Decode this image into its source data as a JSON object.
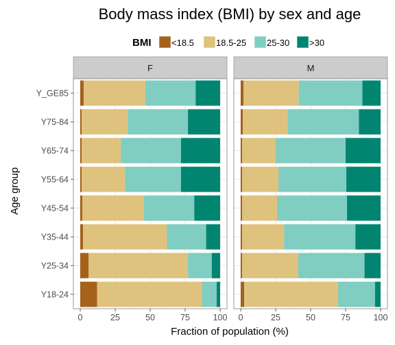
{
  "chart_data": {
    "type": "bar",
    "orientation": "horizontal",
    "stacked": true,
    "title": "Body mass index (BMI) by sex and age",
    "xlabel": "Fraction of population (%)",
    "ylabel": "Age group",
    "xlim": [
      0,
      100
    ],
    "x_ticks": [
      "0",
      "25",
      "50",
      "75",
      "100"
    ],
    "grid": true,
    "legend": {
      "title": "BMI",
      "position": "top",
      "entries": [
        "<18.5",
        "18.5-25",
        "25-30",
        ">30"
      ],
      "colors": [
        "#A6611A",
        "#DFC27D",
        "#80CDC1",
        "#018571"
      ]
    },
    "categories": [
      "Y18-24",
      "Y25-34",
      "Y35-44",
      "Y45-54",
      "Y55-64",
      "Y65-74",
      "Y75-84",
      "Y_GE85"
    ],
    "facets": [
      {
        "name": "F",
        "series": [
          {
            "name": "<18.5",
            "values": [
              12,
              6,
              2,
              1.5,
              1,
              1,
              1,
              2.5
            ]
          },
          {
            "name": "18.5-25",
            "values": [
              75,
              71,
              60,
              44,
              31,
              28,
              33,
              44
            ]
          },
          {
            "name": "25-30",
            "values": [
              10.5,
              17,
              28,
              36,
              40,
              43,
              43,
              36
            ]
          },
          {
            "name": ">30",
            "values": [
              2.5,
              6,
              10,
              18.5,
              28,
              28,
              23,
              17.5
            ]
          }
        ]
      },
      {
        "name": "M",
        "series": [
          {
            "name": "<18.5",
            "values": [
              2.5,
              1,
              1,
              1,
              1,
              1,
              1.5,
              2
            ]
          },
          {
            "name": "18.5-25",
            "values": [
              67,
              40,
              30,
              25,
              26,
              24,
              32,
              39.5
            ]
          },
          {
            "name": "25-30",
            "values": [
              26.5,
              47.5,
              51,
              50,
              48.5,
              50,
              51,
              45.5
            ]
          },
          {
            "name": ">30",
            "values": [
              4,
              11.5,
              18,
              24,
              24.5,
              25,
              15.5,
              13
            ]
          }
        ]
      }
    ]
  }
}
